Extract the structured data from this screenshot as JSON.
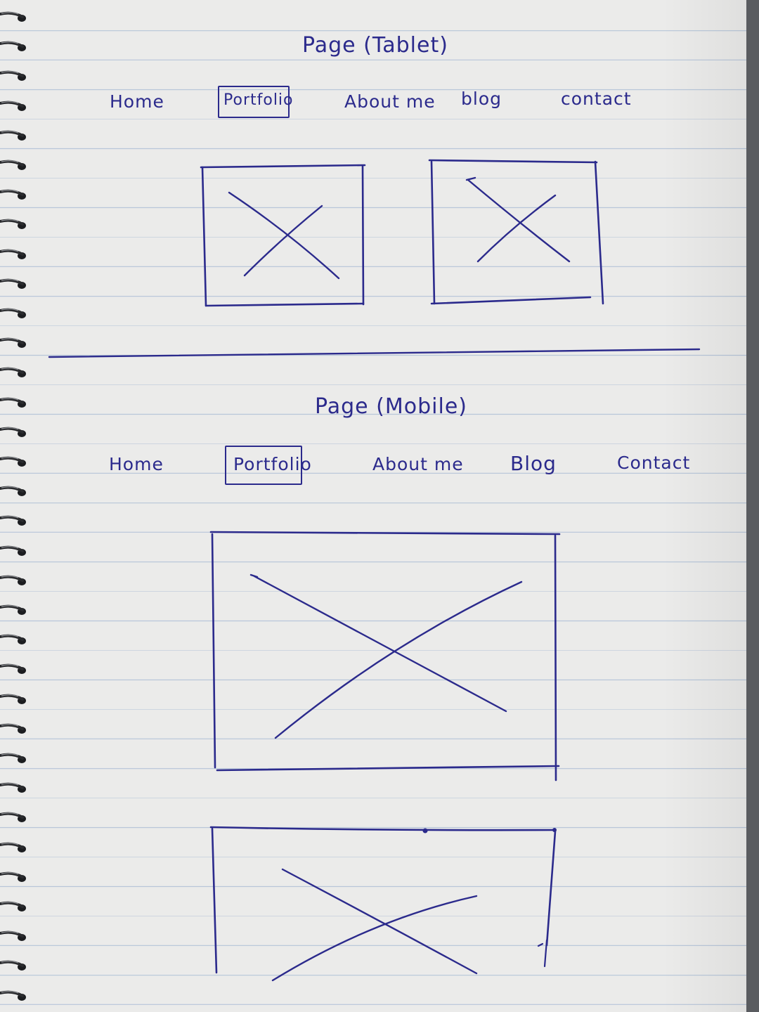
{
  "tablet": {
    "title": "Page (Tablet)",
    "nav": [
      "Home",
      "Portfolio",
      "About me",
      "blog",
      "contact"
    ],
    "active_nav": "Portfolio"
  },
  "mobile": {
    "title": "Page (Mobile)",
    "nav": [
      "Home",
      "Portfolio",
      "About me",
      "Blog",
      "Contact"
    ],
    "active_nav": "Portfolio"
  },
  "colors": {
    "ink": "#2b2a8c",
    "paper": "#ebebea",
    "rule_line": "#b8c6d9",
    "background": "#5a5c60"
  }
}
